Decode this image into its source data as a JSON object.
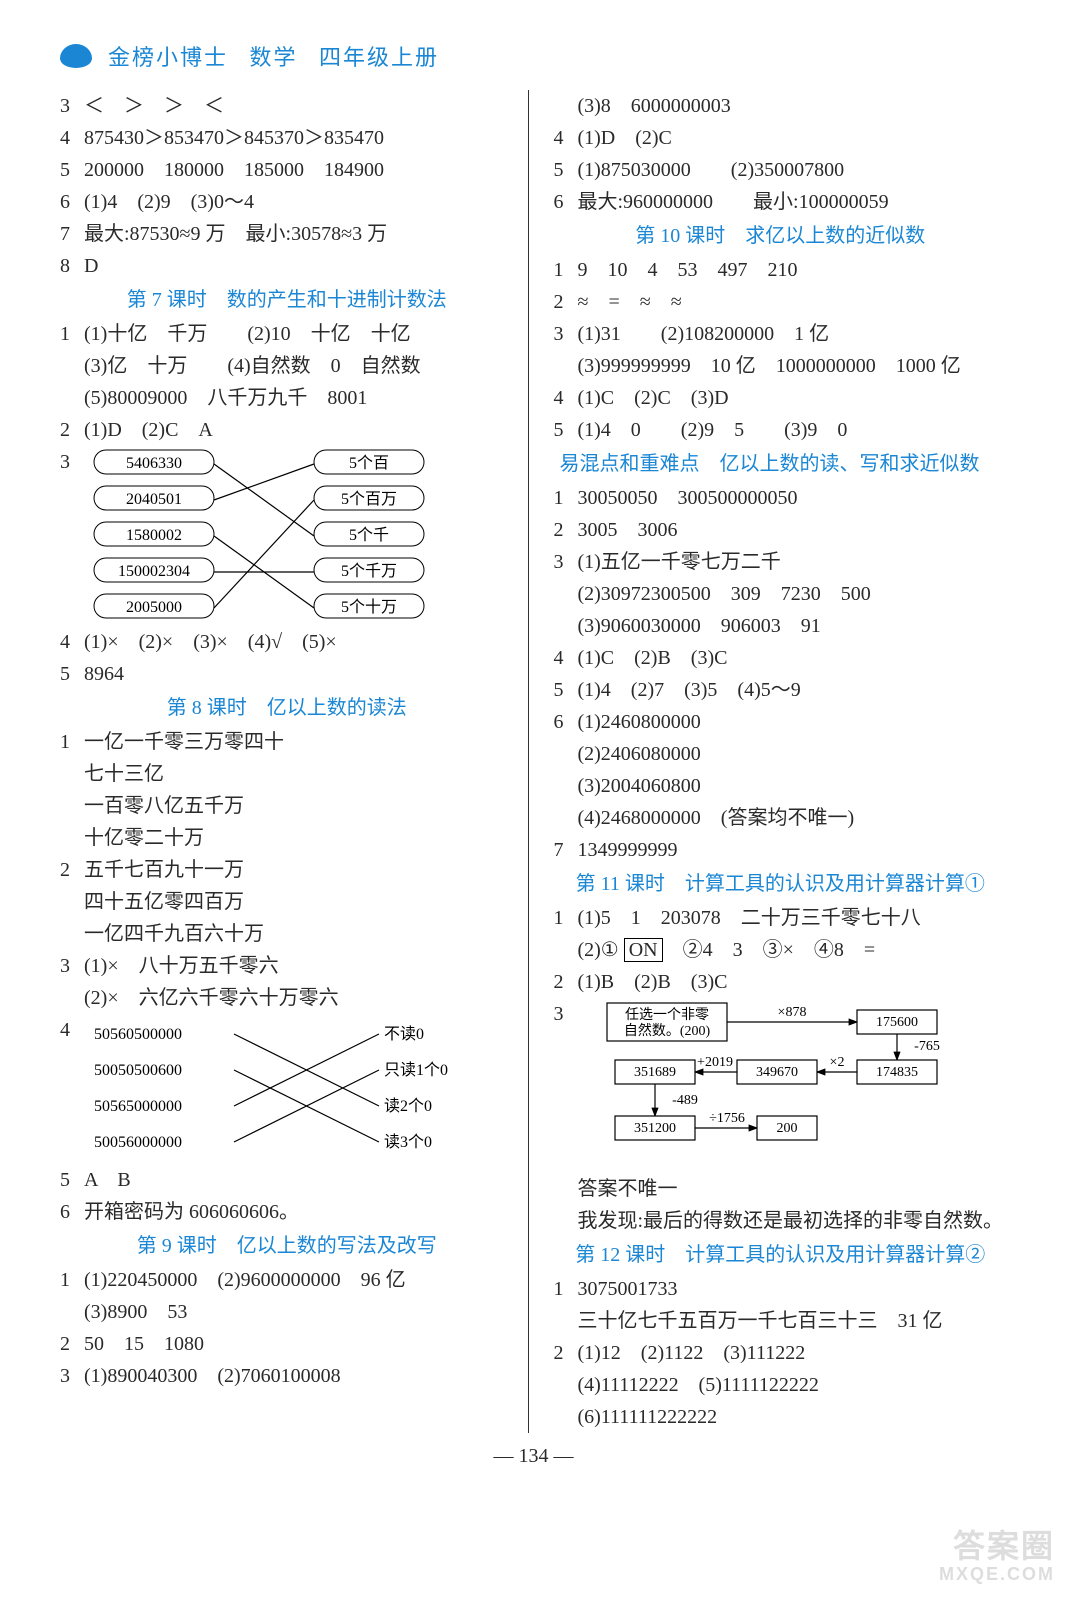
{
  "header": {
    "title": "金榜小博士",
    "subject": "数学",
    "grade": "四年级上册"
  },
  "pageNumber": "— 134 —",
  "watermark_top": "答案圈",
  "watermark_bottom": "MXQE.COM",
  "left": {
    "q3": "＜　＞　＞　＜",
    "q4": "875430＞853470＞845370＞835470",
    "q5": "200000　180000　185000　184900",
    "q6": "(1)4　(2)9　(3)0～4",
    "q7": "最大:87530≈9 万　最小:30578≈3 万",
    "q8": "D",
    "section7": "第 7 课时　数的产生和十进制计数法",
    "s7_1a": "(1)十亿　千万　　(2)10　十亿　十亿",
    "s7_1b": "(3)亿　十万　　(4)自然数　0　自然数",
    "s7_1c": "(5)80009000　八千万九千　8001",
    "s7_2": "(1)D　(2)C　A",
    "s7_3_left": [
      "5406330",
      "2040501",
      "1580002",
      "150002304",
      "2005000"
    ],
    "s7_3_right": [
      "5个百",
      "5个百万",
      "5个千",
      "5个千万",
      "5个十万"
    ],
    "s7_4": "(1)×　(2)×　(3)×　(4)√　(5)×",
    "s7_5": "8964",
    "section8": "第 8 课时　亿以上数的读法",
    "s8_1a": "一亿一千零三万零四十",
    "s8_1b": "七十三亿",
    "s8_1c": "一百零八亿五千万",
    "s8_1d": "十亿零二十万",
    "s8_2a": "五千七百九十一万",
    "s8_2b": "四十五亿零四百万",
    "s8_2c": "一亿四千九百六十万",
    "s8_3a": "(1)×　八十万五千零六",
    "s8_3b": "(2)×　六亿六千零六十万零六",
    "s8_4_left": [
      "50560500000",
      "50050500600",
      "50565000000",
      "50056000000"
    ],
    "s8_4_right": [
      "不读0",
      "只读1个0",
      "读2个0",
      "读3个0"
    ],
    "s8_5": "A　B",
    "s8_6": "开箱密码为 606060606。",
    "section9": "第 9 课时　亿以上数的写法及改写",
    "s9_1a": "(1)220450000　(2)9600000000　96 亿",
    "s9_1b": "(3)8900　53",
    "s9_2": "50　15　1080",
    "s9_3": "(1)890040300　(2)7060100008"
  },
  "right": {
    "cont_3": "(3)8　6000000003",
    "q4": "(1)D　(2)C",
    "q5": "(1)875030000　　(2)350007800",
    "q6": "最大:960000000　　最小:100000059",
    "section10": "第 10 课时　求亿以上数的近似数",
    "s10_1": "9　10　4　53　497　210",
    "s10_2": "≈　=　≈　≈",
    "s10_3a": "(1)31　　(2)108200000　1 亿",
    "s10_3b": "(3)999999999　10 亿　1000000000　1000 亿",
    "s10_4": "(1)C　(2)C　(3)D",
    "s10_5": "(1)4　0　　(2)9　5　　(3)9　0",
    "mix_title": "易混点和重难点　亿以上数的读、写和求近似数",
    "m1": "30050050　300500000050",
    "m2": "3005　3006",
    "m3a": "(1)五亿一千零七万二千",
    "m3b": "(2)30972300500　309　7230　500",
    "m3c": "(3)9060030000　906003　91",
    "m4": "(1)C　(2)B　(3)C",
    "m5": "(1)4　(2)7　(3)5　(4)5～9",
    "m6a": "(1)2460800000",
    "m6b": "(2)2406080000",
    "m6c": "(3)2004060800",
    "m6d": "(4)2468000000　(答案均不唯一)",
    "m7": "1349999999",
    "section11": "第 11 课时　计算工具的认识及用计算器计算①",
    "s11_1a": "(1)5　1　203078　二十万三千零七十八",
    "s11_1b_pre": "(2)① ",
    "s11_1b_on": "ON",
    "s11_1b_post": "　②4　3　③×　④8　=",
    "s11_2": "(1)B　(2)B　(3)C",
    "s11_diag": {
      "start_a": "任选一个非零",
      "start_b": "自然数。(200)",
      "x878": "×878",
      "b1": "175600",
      "m765": "-765",
      "b2": "174835",
      "x2": "×2",
      "b3": "349670",
      "p2019": "+2019",
      "b4": "351689",
      "m489": "-489",
      "b5": "351200",
      "d1756": "÷1756",
      "b6": "200"
    },
    "s11_3a": "答案不唯一",
    "s11_3b": "我发现:最后的得数还是最初选择的非零自然数。",
    "section12": "第 12 课时　计算工具的认识及用计算器计算②",
    "s12_1a": "3075001733",
    "s12_1b": "三十亿七千五百万一千七百三十三　31 亿",
    "s12_2a": "(1)12　(2)1122　(3)111222",
    "s12_2b": "(4)11112222　(5)1111122222",
    "s12_2c": "(6)111111222222"
  }
}
